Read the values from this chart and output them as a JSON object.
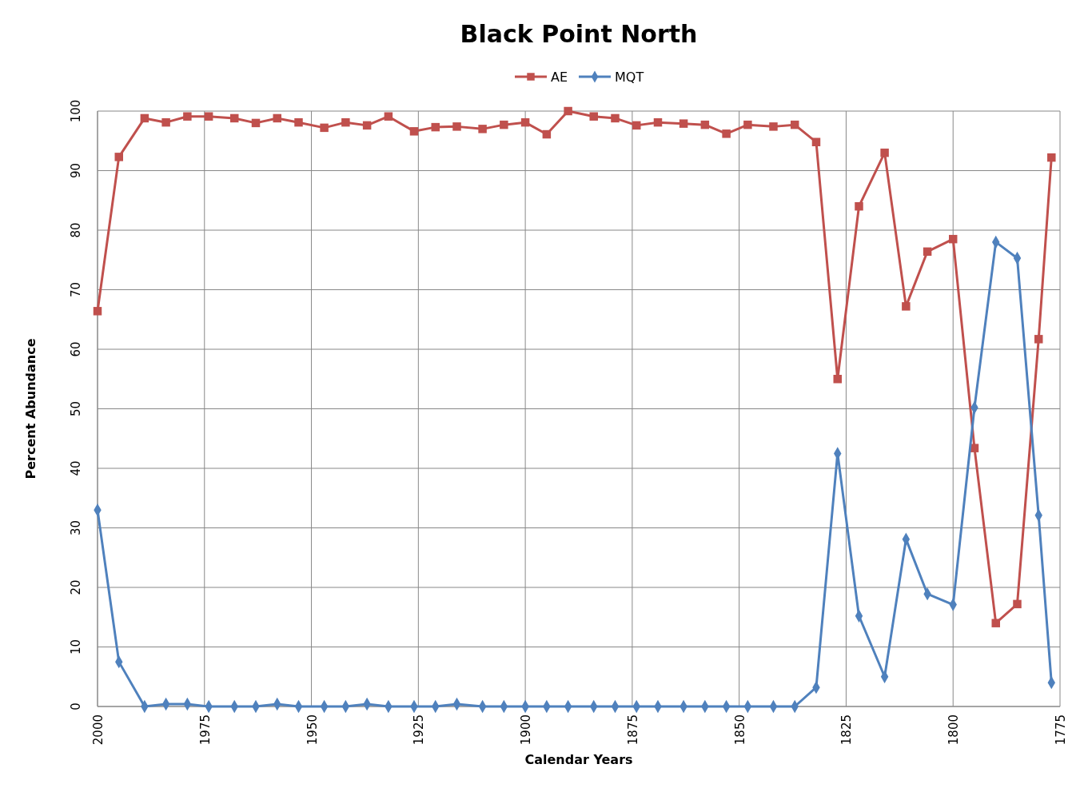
{
  "chart_data": {
    "type": "line",
    "title": "Black Point North",
    "xlabel": "Calendar Years",
    "ylabel": "Percent Abundance",
    "x": [
      2000,
      1995,
      1989,
      1984,
      1979,
      1974,
      1968,
      1963,
      1958,
      1953,
      1947,
      1942,
      1937,
      1932,
      1926,
      1921,
      1916,
      1910,
      1905,
      1900,
      1895,
      1890,
      1884,
      1879,
      1874,
      1869,
      1863,
      1858,
      1853,
      1848,
      1842,
      1837,
      1832,
      1827,
      1822,
      1816,
      1811,
      1806,
      1800,
      1795,
      1790,
      1785,
      1780,
      1777
    ],
    "series": [
      {
        "name": "AE",
        "color": "#c0504d",
        "marker": "square",
        "values": [
          66.4,
          92.3,
          98.8,
          98.1,
          99.1,
          99.1,
          98.8,
          98.0,
          98.8,
          98.1,
          97.2,
          98.1,
          97.6,
          99.1,
          96.6,
          97.3,
          97.4,
          97.0,
          97.7,
          98.1,
          96.1,
          100,
          99.1,
          98.8,
          97.6,
          98.1,
          97.9,
          97.7,
          96.2,
          97.7,
          97.4,
          97.7,
          94.8,
          55,
          84,
          93,
          67.2,
          76.4,
          78.5,
          43.4,
          14,
          17.2,
          61.7,
          92.2
        ]
      },
      {
        "name": "MQT",
        "color": "#4f81bd",
        "marker": "diamond",
        "values": [
          33,
          7.5,
          0,
          0.4,
          0.4,
          0,
          0,
          0,
          0.4,
          0,
          0,
          0,
          0.4,
          0,
          0,
          0,
          0.4,
          0,
          0,
          0,
          0,
          0,
          0,
          0,
          0,
          0,
          0,
          0,
          0,
          0,
          0,
          0,
          3.2,
          42.5,
          15.2,
          5,
          28.1,
          18.9,
          17.1,
          50.2,
          78,
          75.3,
          32.1,
          4
        ]
      }
    ],
    "xlim": [
      2000,
      1775
    ],
    "xticks": [
      2000,
      1975,
      1950,
      1925,
      1900,
      1875,
      1850,
      1825,
      1800,
      1775
    ],
    "ylim": [
      0,
      100
    ],
    "yticks": [
      0,
      10,
      20,
      30,
      40,
      50,
      60,
      70,
      80,
      90,
      100
    ],
    "grid": true,
    "legend": "top",
    "line_style": "solid"
  }
}
